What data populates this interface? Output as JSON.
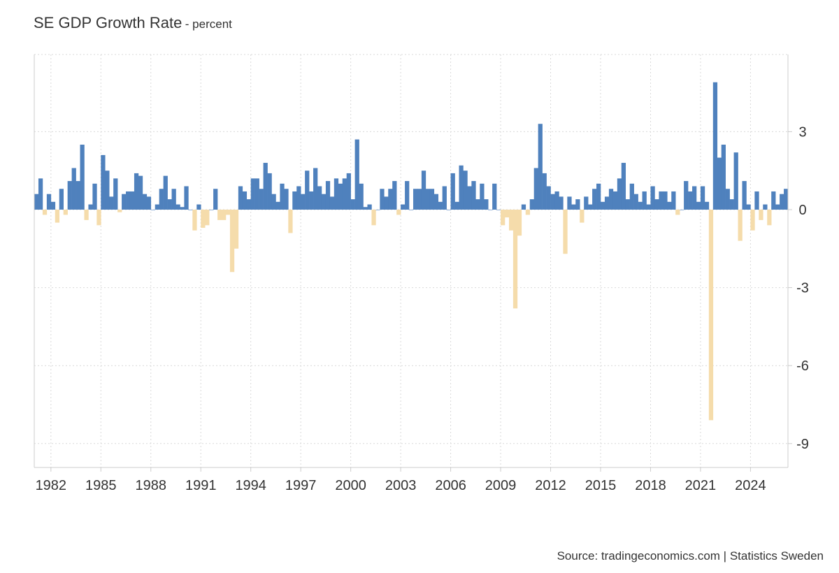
{
  "header": {
    "title": "SE GDP Growth Rate",
    "unit": "- percent"
  },
  "footer": {
    "source": "Source: tradingeconomics.com | Statistics Sweden"
  },
  "colors": {
    "positive": "#4f81bd",
    "negative": "#f5dcab",
    "grid": "#d9d9d9",
    "axis": "#cccccc"
  },
  "chart_data": {
    "type": "bar",
    "title": "SE GDP Growth Rate",
    "subtitle": "- percent",
    "frequency": "quarterly",
    "start_year": 1981,
    "x_tick_labels": [
      "1982",
      "1985",
      "1988",
      "1991",
      "1994",
      "1997",
      "2000",
      "2003",
      "2006",
      "2009",
      "2012",
      "2015",
      "2018",
      "2021",
      "2024"
    ],
    "y_ticks": [
      3,
      0,
      -3,
      -6,
      -9
    ],
    "ylim": [
      -10,
      6
    ],
    "grid": true,
    "values": [
      0.6,
      1.2,
      -0.2,
      0.6,
      0.3,
      -0.5,
      0.8,
      -0.2,
      1.1,
      1.6,
      1.1,
      2.5,
      -0.4,
      0.2,
      1.0,
      -0.6,
      2.1,
      1.5,
      0.5,
      1.2,
      -0.1,
      0.6,
      0.7,
      0.7,
      1.4,
      1.3,
      0.6,
      0.5,
      0.0,
      0.2,
      0.8,
      1.3,
      0.4,
      0.8,
      0.2,
      0.1,
      0.9,
      0.0,
      -0.8,
      0.2,
      -0.7,
      -0.6,
      0.0,
      0.8,
      -0.4,
      -0.4,
      -0.2,
      -2.4,
      -1.5,
      0.9,
      0.7,
      0.4,
      1.2,
      1.2,
      0.8,
      1.8,
      1.4,
      0.6,
      0.3,
      1.0,
      0.8,
      -0.9,
      0.7,
      0.9,
      0.6,
      1.5,
      0.7,
      1.6,
      0.9,
      0.6,
      1.1,
      0.5,
      1.2,
      1.0,
      1.2,
      1.4,
      0.4,
      2.7,
      1.0,
      0.1,
      0.2,
      -0.6,
      0.0,
      0.8,
      0.5,
      0.8,
      1.1,
      -0.2,
      0.2,
      1.1,
      0.0,
      0.8,
      0.8,
      1.5,
      0.8,
      0.8,
      0.6,
      0.3,
      0.9,
      0.0,
      1.4,
      0.3,
      1.7,
      1.5,
      0.9,
      1.1,
      0.4,
      1.0,
      0.4,
      0.0,
      1.0,
      0.0,
      -0.6,
      -0.3,
      -0.8,
      -3.8,
      -1.0,
      0.2,
      -0.2,
      0.4,
      1.6,
      3.3,
      1.4,
      0.9,
      0.6,
      0.7,
      0.5,
      -1.7,
      0.5,
      0.2,
      0.4,
      -0.5,
      0.5,
      0.2,
      0.8,
      1.0,
      0.3,
      0.5,
      0.8,
      0.7,
      1.2,
      1.8,
      0.4,
      1.0,
      0.6,
      0.3,
      0.7,
      0.2,
      0.9,
      0.4,
      0.7,
      0.7,
      0.3,
      0.7,
      -0.2,
      0.0,
      1.1,
      0.7,
      0.9,
      0.3,
      0.9,
      0.3,
      -8.1,
      4.9,
      2.0,
      2.5,
      0.8,
      0.4,
      2.2,
      -1.2,
      1.1,
      0.2,
      -0.8,
      0.7,
      -0.4,
      0.2,
      -0.6,
      0.7,
      0.2,
      0.6,
      0.8
    ]
  }
}
